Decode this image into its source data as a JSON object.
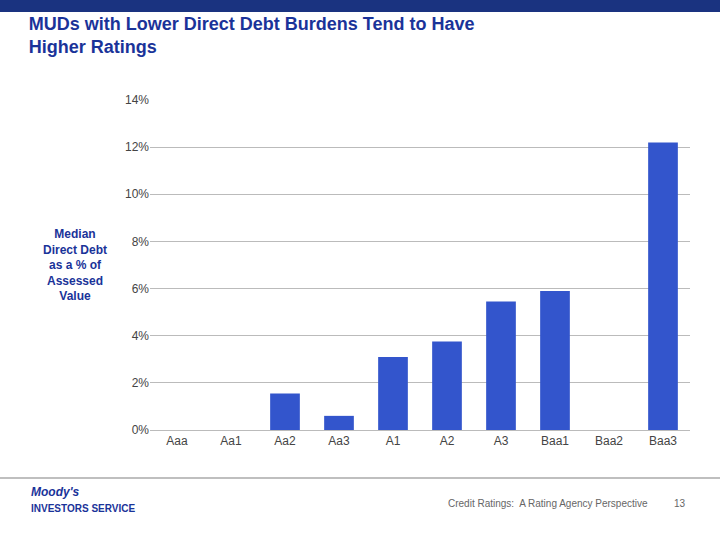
{
  "chart_data": {
    "type": "bar",
    "title": "MUDs with Lower Direct Debt Burdens Tend to Have\nHigher Ratings",
    "ylabel": "Median\nDirect Debt\nas a % of\nAssessed\nValue",
    "categories": [
      "Aaa",
      "Aa1",
      "Aa2",
      "Aa3",
      "A1",
      "A2",
      "A3",
      "Baa1",
      "Baa2",
      "Baa3"
    ],
    "values": [
      0.0,
      0.0,
      1.55,
      0.6,
      3.1,
      3.75,
      5.45,
      5.9,
      0.0,
      12.2
    ],
    "color": "#3355cc",
    "ylim": [
      0,
      14
    ],
    "yticks": [
      {
        "value": 0,
        "label": "0%"
      },
      {
        "value": 2,
        "label": "2%"
      },
      {
        "value": 4,
        "label": "4%"
      },
      {
        "value": 6,
        "label": "6%"
      },
      {
        "value": 8,
        "label": "8%"
      },
      {
        "value": 10,
        "label": "10%"
      },
      {
        "value": 12,
        "label": "12%"
      },
      {
        "value": 14,
        "label": "14%"
      }
    ],
    "grid": true,
    "annotations": [
      "Moody's",
      "INVESTORS SERVICE",
      "Credit Ratings:  A Rating Agency Perspective",
      "13"
    ]
  }
}
